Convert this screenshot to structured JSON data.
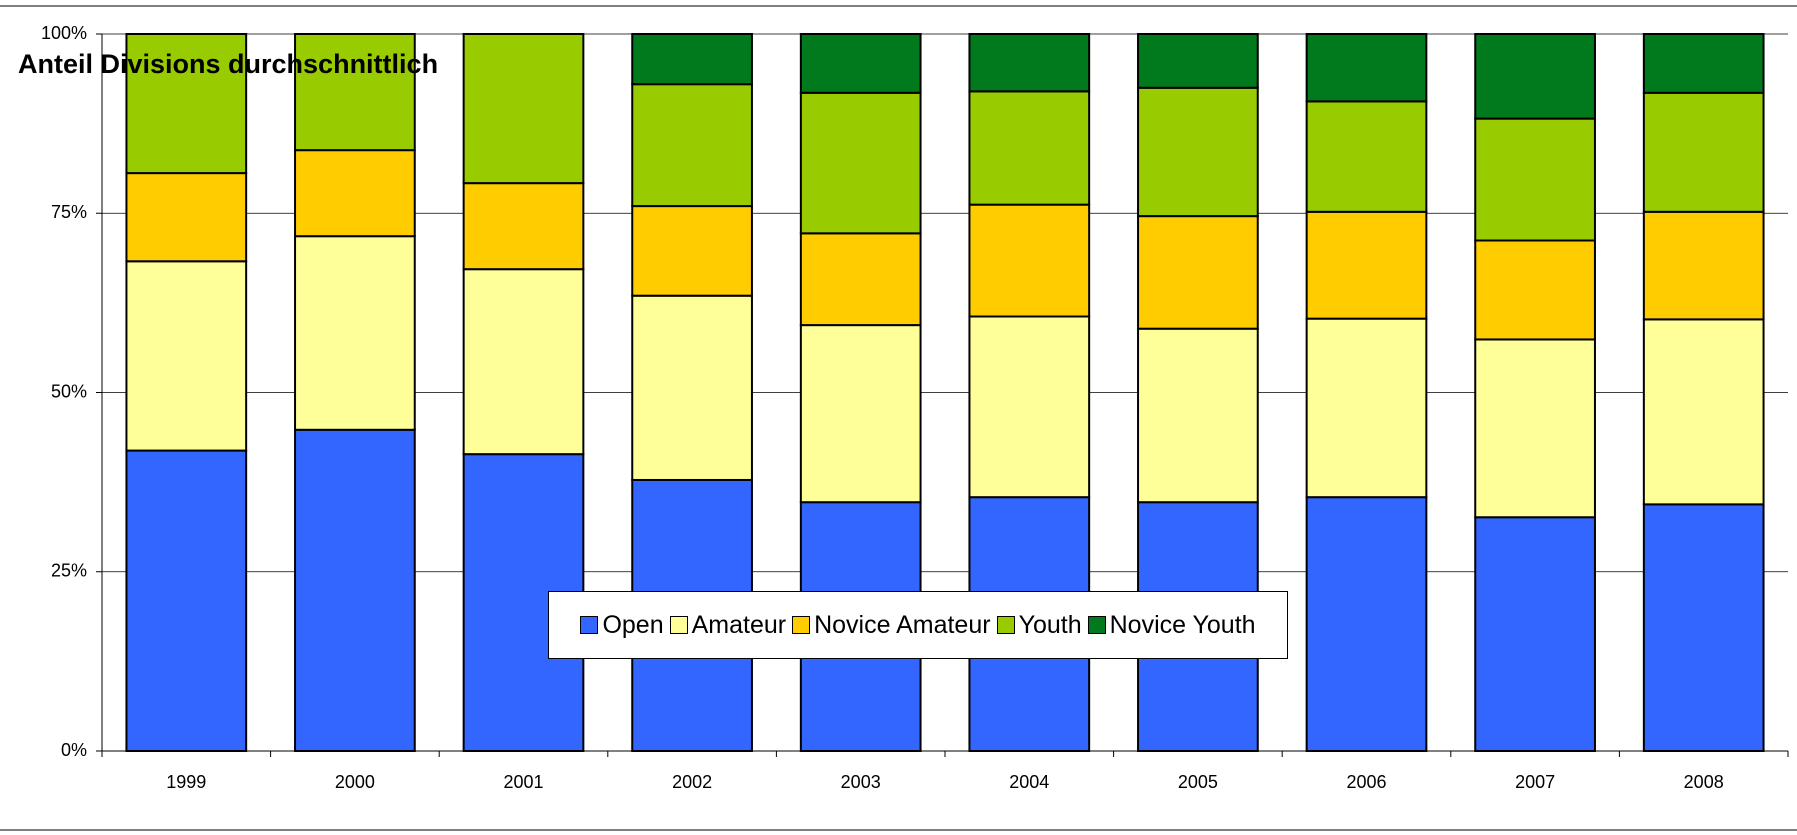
{
  "chart_data": {
    "type": "stacked_bar",
    "title": "Anteil Divisions durchschnittlich",
    "categories": [
      "1999",
      "2000",
      "2001",
      "2002",
      "2003",
      "2004",
      "2005",
      "2006",
      "2007",
      "2008"
    ],
    "series": [
      {
        "name": "Open",
        "color": "#3366ff",
        "values": [
          41.9,
          44.8,
          41.4,
          37.8,
          34.7,
          35.4,
          34.7,
          35.4,
          32.6,
          34.4
        ]
      },
      {
        "name": "Amateur",
        "color": "#ffff99",
        "values": [
          26.4,
          27.0,
          25.8,
          25.7,
          24.7,
          25.2,
          24.2,
          24.9,
          24.8,
          25.8
        ]
      },
      {
        "name": "Novice Amateur",
        "color": "#ffcc00",
        "values": [
          12.3,
          12.0,
          12.0,
          12.5,
          12.8,
          15.6,
          15.7,
          14.9,
          13.8,
          15.0
        ]
      },
      {
        "name": "Youth",
        "color": "#99cc00",
        "values": [
          19.4,
          16.2,
          20.8,
          17.0,
          19.6,
          15.8,
          17.9,
          15.4,
          17.0,
          16.6
        ]
      },
      {
        "name": "Novice Youth",
        "color": "#007a1c",
        "values": [
          0,
          0,
          0,
          7.0,
          8.2,
          8.0,
          7.5,
          9.4,
          11.8,
          8.2
        ]
      }
    ],
    "ylim": [
      0,
      100
    ],
    "yticks": [
      {
        "value": 0,
        "label": "0%"
      },
      {
        "value": 25,
        "label": "25%"
      },
      {
        "value": 50,
        "label": "50%"
      },
      {
        "value": 75,
        "label": "75%"
      },
      {
        "value": 100,
        "label": "100%"
      }
    ],
    "grid": true
  }
}
